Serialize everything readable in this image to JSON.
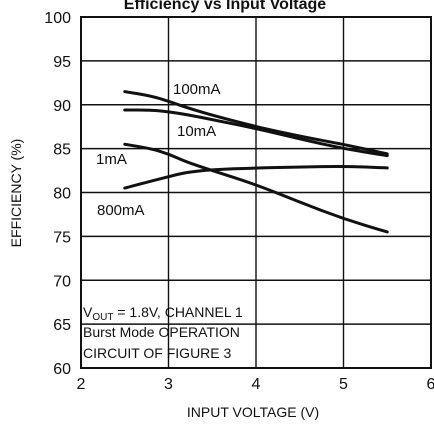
{
  "chart_data": {
    "type": "line",
    "title": "",
    "top_cropped_text": "Efficiency vs Input Voltage",
    "xlabel": "INPUT VOLTAGE (V)",
    "ylabel": "EFFICIENCY (%)",
    "xlim": [
      2,
      6
    ],
    "ylim": [
      60,
      100
    ],
    "x_ticks": [
      2,
      3,
      4,
      5,
      6
    ],
    "y_ticks": [
      60,
      65,
      70,
      75,
      80,
      85,
      90,
      95,
      100
    ],
    "grid": true,
    "series": [
      {
        "name": "100mA",
        "x": [
          2.5,
          2.8,
          3.0,
          3.2,
          3.5,
          4.0,
          4.5,
          5.0,
          5.5
        ],
        "y": [
          91.5,
          91.0,
          90.4,
          89.7,
          88.8,
          87.5,
          86.4,
          85.5,
          84.4
        ]
      },
      {
        "name": "10mA",
        "x": [
          2.5,
          2.8,
          3.0,
          3.2,
          3.5,
          4.0,
          4.5,
          5.0,
          5.5
        ],
        "y": [
          89.4,
          89.4,
          89.2,
          88.9,
          88.3,
          87.3,
          86.1,
          85.0,
          84.2
        ]
      },
      {
        "name": "1mA",
        "x": [
          2.5,
          2.8,
          3.0,
          3.2,
          3.5,
          4.0,
          4.5,
          5.0,
          5.5
        ],
        "y": [
          85.5,
          85.0,
          84.4,
          83.5,
          82.5,
          80.9,
          78.9,
          77.0,
          75.5
        ]
      },
      {
        "name": "800mA",
        "x": [
          2.5,
          2.8,
          3.0,
          3.2,
          3.5,
          4.0,
          4.5,
          5.0,
          5.5
        ],
        "y": [
          80.5,
          81.3,
          81.8,
          82.3,
          82.6,
          82.8,
          82.9,
          83.0,
          82.8
        ]
      }
    ],
    "annotations": {
      "line1_main": "V",
      "line1_sub": "OUT",
      "line1_rest": " = 1.8V, CHANNEL 1",
      "line2": "Burst Mode OPERATION",
      "line3": "CIRCUIT OF FIGURE 3"
    }
  }
}
